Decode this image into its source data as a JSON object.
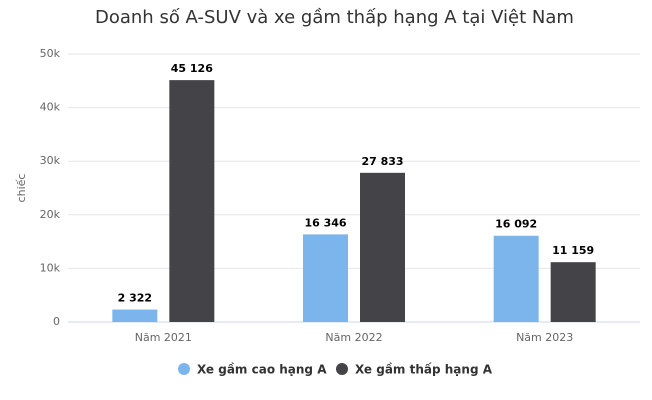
{
  "chart_data": {
    "type": "bar",
    "title": "Doanh số A-SUV và xe gầm thấp hạng A tại Việt Nam",
    "y_label": "chiếc",
    "categories": [
      "Năm 2021",
      "Năm 2022",
      "Năm 2023"
    ],
    "series": [
      {
        "name": "Xe gầm cao hạng A",
        "color": "#7cb5ec",
        "values": [
          2322,
          16346,
          16092
        ],
        "value_labels": [
          "2 322",
          "16 346",
          "16 092"
        ]
      },
      {
        "name": "Xe gầm thấp hạng A",
        "color": "#434348",
        "values": [
          45126,
          27833,
          11159
        ],
        "value_labels": [
          "45 126",
          "27 833",
          "11 159"
        ]
      }
    ],
    "ylim": [
      0,
      50000
    ],
    "yticks": [
      0,
      {
        "value": 10000,
        "label": "10k"
      },
      {
        "value": 20000,
        "label": "20k"
      },
      {
        "value": 30000,
        "label": "30k"
      },
      {
        "value": 40000,
        "label": "40k"
      },
      {
        "value": 50000,
        "label": "50k"
      }
    ],
    "grid": true
  }
}
